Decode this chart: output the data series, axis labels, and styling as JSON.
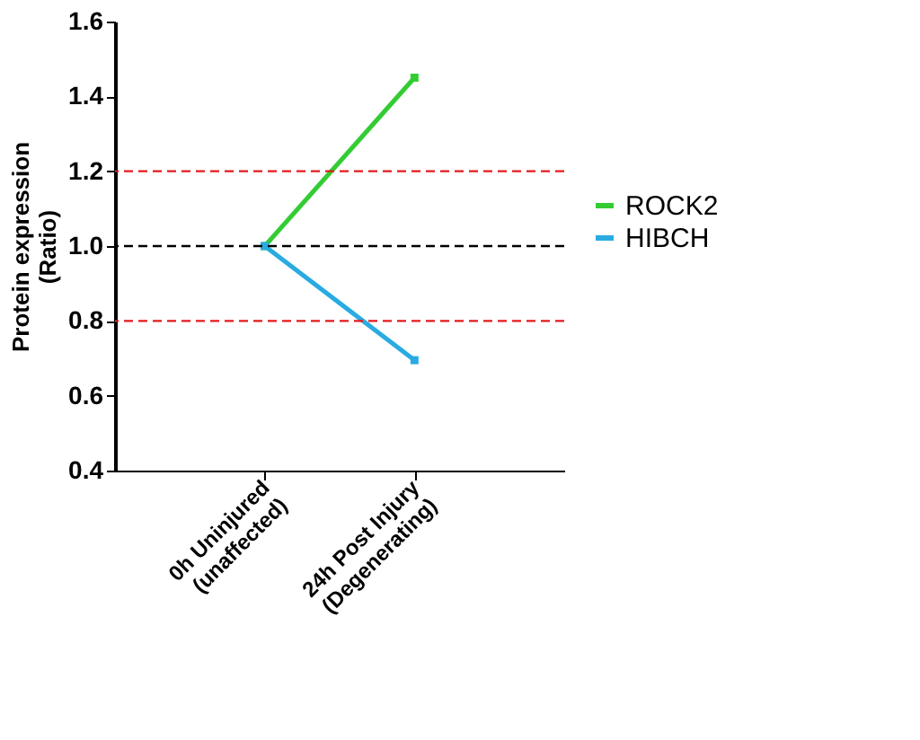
{
  "chart_data": {
    "type": "line",
    "ylabel": "Protein expression\n(Ratio)",
    "categories": [
      "0h Uninjured\n(unaffected)",
      "24h Post Injury\n(Degenerating)"
    ],
    "series": [
      {
        "name": "ROCK2",
        "color": "#33cc33",
        "values": [
          1.0,
          1.45
        ]
      },
      {
        "name": "HIBCH",
        "color": "#29abe2",
        "values": [
          1.0,
          0.695
        ]
      }
    ],
    "ylim": [
      0.4,
      1.6
    ],
    "yticks": [
      0.4,
      0.6,
      0.8,
      {
        "value": 1,
        "label": "1.0"
      },
      1.2,
      1.4,
      1.6
    ],
    "ref_lines": [
      {
        "axis": "y",
        "value": 1.2,
        "color": "#e41a1c",
        "line_style": "dashed"
      },
      {
        "axis": "y",
        "value": 1.0,
        "color": "#000000",
        "line_style": "dashed"
      },
      {
        "axis": "y",
        "value": 0.8,
        "color": "#e41a1c",
        "line_style": "dashed"
      }
    ],
    "marker": "square",
    "line_style": "solid",
    "legend": "right",
    "grid": false
  }
}
